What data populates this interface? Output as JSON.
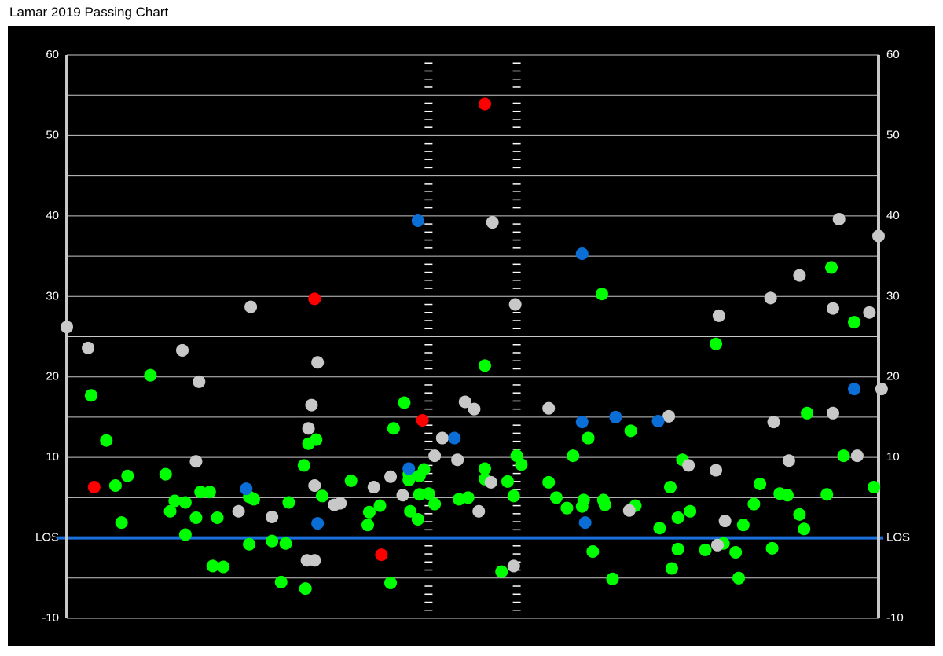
{
  "chart_data": {
    "type": "scatter",
    "title": "Lamar 2019 Passing Chart",
    "xlim": [
      -26.7,
      26.7
    ],
    "ylim": [
      -10,
      60
    ],
    "yticks": [
      -10,
      {
        "value": 0,
        "label": "LOS"
      },
      10,
      20,
      30,
      40,
      50,
      60
    ],
    "minor_yticks": [
      -5,
      5,
      15,
      25,
      35,
      45,
      55
    ],
    "grid": true,
    "grid_color": "#c8c8c8",
    "los_color": "#1a6fdc",
    "hash_marks": [
      -2.9,
      2.9
    ],
    "series": [
      {
        "color": "#00ff00",
        "x": [
          -25.1,
          -24.1,
          -23.5,
          -23.1,
          -22.7,
          -21.2,
          -20.2,
          -19.9,
          -19.6,
          -18.9,
          -18.9,
          -18.2,
          -17.9,
          -17.3,
          -17.1,
          -16.8,
          -16.4,
          -14.7,
          -14.7,
          -14.4,
          -13.2,
          -12.6,
          -12.3,
          -12.1,
          -11.1,
          -11.0,
          -10.8,
          -10.3,
          -9.9,
          -8.0,
          -6.9,
          -6.8,
          -6.1,
          -5.4,
          -5.2,
          -4.5,
          -4.2,
          -4.2,
          -3.5,
          -3.2,
          -3.5,
          -2.9,
          -4.1,
          -3.6,
          -2.5,
          -0.9,
          -0.3,
          0.8,
          0.8,
          0.8,
          1.9,
          2.3,
          2.7,
          2.9,
          3.2,
          5.0,
          5.5,
          6.2,
          6.6,
          7.2,
          7.3,
          7.6,
          7.9,
          8.5,
          8.6,
          8.7,
          9.2,
          10.4,
          10.7,
          12.3,
          13.0,
          13.1,
          13.5,
          13.5,
          13.8,
          14.3,
          15.3,
          16.0,
          16.5,
          17.3,
          17.5,
          17.8,
          18.5,
          18.9,
          19.7,
          20.2,
          20.7,
          21.5,
          21.8,
          22.0,
          23.3,
          23.6,
          24.4,
          25.1,
          26.4
        ],
        "values": [
          17.7,
          12.1,
          6.5,
          1.9,
          7.7,
          20.2,
          7.9,
          3.3,
          4.6,
          4.4,
          0.4,
          2.5,
          5.7,
          5.7,
          -3.5,
          2.5,
          -3.6,
          -0.8,
          5.1,
          4.8,
          -0.4,
          -5.5,
          -0.7,
          4.4,
          9.0,
          -6.3,
          11.7,
          12.2,
          5.2,
          7.1,
          1.6,
          3.2,
          4.0,
          -5.6,
          13.6,
          16.8,
          7.9,
          7.2,
          7.7,
          8.5,
          5.4,
          5.5,
          3.3,
          2.3,
          4.2,
          4.8,
          5.0,
          21.4,
          8.6,
          7.3,
          -4.2,
          7.0,
          5.2,
          10.2,
          9.1,
          6.9,
          5.0,
          3.7,
          10.2,
          3.9,
          4.7,
          12.4,
          -1.7,
          30.3,
          4.7,
          4.1,
          -5.1,
          13.3,
          4.0,
          1.2,
          6.3,
          -3.8,
          2.5,
          -1.4,
          9.7,
          3.3,
          -1.5,
          24.1,
          -0.7,
          -1.8,
          -5.0,
          1.6,
          4.2,
          6.7,
          -1.3,
          5.5,
          5.3,
          2.9,
          1.1,
          15.5,
          5.4,
          33.6,
          10.2,
          26.8,
          6.3
        ]
      },
      {
        "color": "#c8c8c8",
        "x": [
          -26.7,
          -25.3,
          -19.1,
          -18.0,
          -14.6,
          -18.2,
          -15.4,
          -13.2,
          -10.8,
          -10.6,
          -10.4,
          -10.2,
          -10.9,
          -10.4,
          -9.1,
          -8.7,
          -6.5,
          -5.4,
          -4.6,
          -2.5,
          -2.0,
          -1.0,
          -0.5,
          0.1,
          0.4,
          1.3,
          1.2,
          2.8,
          2.7,
          5.0,
          10.3,
          12.9,
          14.2,
          16.0,
          16.2,
          16.6,
          16.1,
          19.6,
          19.8,
          20.8,
          21.5,
          23.7,
          23.7,
          24.1,
          25.3,
          26.1,
          26.7,
          26.9
        ],
        "values": [
          26.2,
          23.6,
          23.3,
          19.4,
          28.7,
          9.5,
          3.3,
          2.6,
          13.6,
          16.5,
          6.5,
          21.8,
          -2.8,
          -2.8,
          4.1,
          4.3,
          6.3,
          7.6,
          5.3,
          10.2,
          12.4,
          9.7,
          16.9,
          16.0,
          3.3,
          39.2,
          6.9,
          29.0,
          -3.5,
          16.1,
          3.4,
          15.1,
          9.0,
          8.4,
          27.6,
          2.1,
          -0.9,
          29.8,
          14.4,
          9.6,
          32.6,
          28.5,
          15.5,
          39.6,
          10.2,
          28.0,
          37.5,
          18.5
        ]
      },
      {
        "color": "#0a6ed6",
        "x": [
          -3.6,
          7.2,
          -1.2,
          -4.2,
          -14.9,
          -10.2,
          7.2,
          9.4,
          12.2,
          7.4,
          25.1
        ],
        "values": [
          39.4,
          35.3,
          12.4,
          8.6,
          6.1,
          1.8,
          14.4,
          15.0,
          14.5,
          1.9,
          18.5
        ]
      },
      {
        "color": "#ff0000",
        "x": [
          -24.9,
          -10.4,
          -3.3,
          -6.0,
          0.8
        ],
        "values": [
          6.3,
          29.7,
          14.6,
          -2.1,
          53.9
        ]
      }
    ]
  }
}
